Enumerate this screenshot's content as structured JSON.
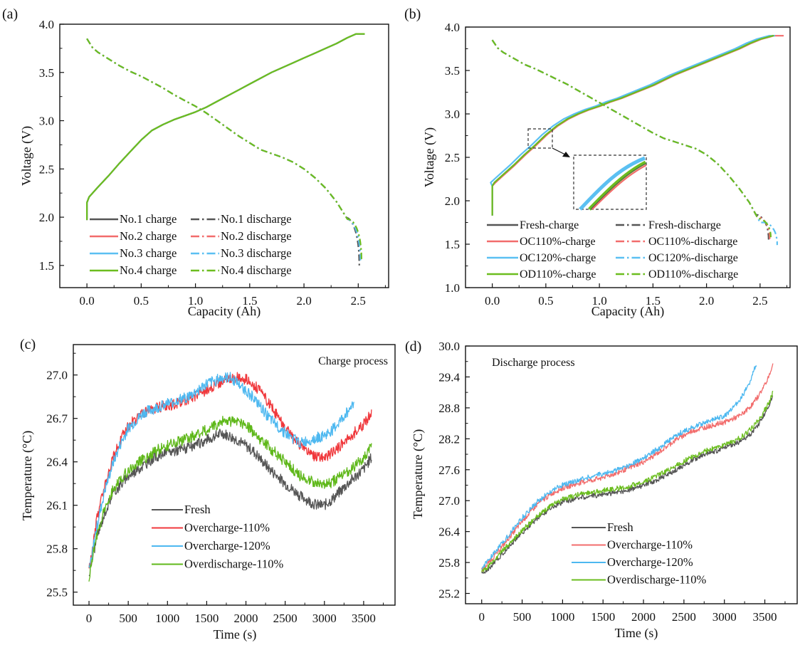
{
  "figure": {
    "colors": {
      "black": "#555555",
      "red": "#f26c6c",
      "blue": "#5bc0f2",
      "green": "#6bbd1f",
      "axis": "#111111"
    }
  },
  "chart_data": [
    {
      "panel": "(a)",
      "type": "line",
      "title": "",
      "xlabel": "Capacity (Ah)",
      "ylabel": "Voltage (V)",
      "xlim": [
        -0.25,
        2.78
      ],
      "ylim": [
        1.27,
        4.0
      ],
      "xticks": [
        "0.0",
        "0.5",
        "1.0",
        "1.5",
        "2.0",
        "2.5"
      ],
      "xtick_values": [
        0,
        0.5,
        1.0,
        1.5,
        2.0,
        2.5
      ],
      "yticks": [
        "1.5",
        "2.0",
        "2.5",
        "3.0",
        "3.5",
        "4.0"
      ],
      "ytick_values": [
        1.5,
        2.0,
        2.5,
        3.0,
        3.5,
        4.0
      ],
      "legend_position": "bottom-center",
      "series": [
        {
          "name": "No.1 charge",
          "color": "#555555",
          "style": "solid",
          "kind": "charge",
          "offset": 0.0,
          "end": 2.56
        },
        {
          "name": "No.2 charge",
          "color": "#f26c6c",
          "style": "solid",
          "kind": "charge",
          "offset": 0.0,
          "end": 2.56
        },
        {
          "name": "No.3 charge",
          "color": "#5bc0f2",
          "style": "solid",
          "kind": "charge",
          "offset": 0.0,
          "end": 2.56
        },
        {
          "name": "No.4 charge",
          "color": "#6bbd1f",
          "style": "solid",
          "kind": "charge",
          "offset": 0.0,
          "end": 2.56
        },
        {
          "name": "No.1 discharge",
          "color": "#555555",
          "style": "dashdot",
          "kind": "discharge",
          "cap": 2.51,
          "vend": 1.5
        },
        {
          "name": "No.2 discharge",
          "color": "#f26c6c",
          "style": "dashdot",
          "kind": "discharge",
          "cap": 2.52,
          "vend": 1.55
        },
        {
          "name": "No.3 discharge",
          "color": "#5bc0f2",
          "style": "dashdot",
          "kind": "discharge",
          "cap": 2.52,
          "vend": 1.53
        },
        {
          "name": "No.4 discharge",
          "color": "#6bbd1f",
          "style": "dashdot",
          "kind": "discharge",
          "cap": 2.53,
          "vend": 1.56
        }
      ],
      "charge_curve": {
        "x": [
          0.0,
          0.0,
          0.02,
          0.1,
          0.2,
          0.3,
          0.4,
          0.5,
          0.6,
          0.7,
          0.8,
          0.9,
          1.0,
          1.1,
          1.2,
          1.3,
          1.4,
          1.5,
          1.6,
          1.7,
          1.8,
          1.9,
          2.0,
          2.1,
          2.2,
          2.3,
          2.4,
          2.48
        ],
        "y": [
          1.97,
          2.15,
          2.21,
          2.31,
          2.43,
          2.56,
          2.68,
          2.8,
          2.9,
          2.96,
          3.01,
          3.05,
          3.09,
          3.14,
          3.2,
          3.26,
          3.32,
          3.38,
          3.44,
          3.5,
          3.55,
          3.6,
          3.65,
          3.7,
          3.75,
          3.8,
          3.86,
          3.9
        ]
      },
      "discharge_curve": {
        "x": [
          0.0,
          0.05,
          0.1,
          0.2,
          0.3,
          0.4,
          0.5,
          0.6,
          0.7,
          0.8,
          0.9,
          1.0,
          1.1,
          1.2,
          1.3,
          1.4,
          1.5,
          1.6,
          1.7,
          1.8,
          1.9,
          2.0,
          2.1,
          2.2,
          2.3,
          2.4
        ],
        "y": [
          3.85,
          3.76,
          3.71,
          3.64,
          3.57,
          3.51,
          3.46,
          3.4,
          3.34,
          3.27,
          3.21,
          3.15,
          3.08,
          3.0,
          2.92,
          2.84,
          2.77,
          2.7,
          2.66,
          2.62,
          2.57,
          2.5,
          2.41,
          2.3,
          2.16,
          1.98
        ]
      }
    },
    {
      "panel": "(b)",
      "type": "line",
      "title": "",
      "xlabel": "Capacity (Ah)",
      "ylabel": "Voltage (V)",
      "xlim": [
        -0.25,
        2.78
      ],
      "ylim": [
        1.0,
        4.0
      ],
      "xticks": [
        "0.0",
        "0.5",
        "1.0",
        "1.5",
        "2.0",
        "2.5"
      ],
      "xtick_values": [
        0,
        0.5,
        1.0,
        1.5,
        2.0,
        2.5
      ],
      "yticks": [
        "1.0",
        "1.5",
        "2.0",
        "2.5",
        "3.0",
        "3.5",
        "4.0"
      ],
      "ytick_values": [
        1.0,
        1.5,
        2.0,
        2.5,
        3.0,
        3.5,
        4.0
      ],
      "legend_position": "bottom-center",
      "inset": "zoomed view of charge curves near 0.35–0.55 Ah, 2.6–2.8 V",
      "series": [
        {
          "name": "Fresh-charge",
          "color": "#555555",
          "style": "solid",
          "kind": "charge",
          "offset": 0.0,
          "end": 2.62
        },
        {
          "name": "Fresh-discharge",
          "color": "#555555",
          "style": "dashdot",
          "kind": "discharge",
          "cap": 2.58,
          "vend": 1.55
        },
        {
          "name": "OC110%-charge",
          "color": "#f26c6c",
          "style": "solid",
          "kind": "charge",
          "offset": 0.01,
          "end": 2.72
        },
        {
          "name": "OC110%-discharge",
          "color": "#f26c6c",
          "style": "dashdot",
          "kind": "discharge",
          "cap": 2.59,
          "vend": 1.56
        },
        {
          "name": "OC120%-charge",
          "color": "#5bc0f2",
          "style": "solid",
          "kind": "charge",
          "offset": -0.035,
          "end": 2.64
        },
        {
          "name": "OC120%-discharge",
          "color": "#5bc0f2",
          "style": "dashdot",
          "kind": "discharge",
          "cap": 2.66,
          "vend": 1.49
        },
        {
          "name": "OD110%-charge",
          "color": "#6bbd1f",
          "style": "solid",
          "kind": "charge",
          "offset": 0.0,
          "end": 2.63
        },
        {
          "name": "OD110%-discharge",
          "color": "#6bbd1f",
          "style": "dashdot",
          "kind": "discharge",
          "cap": 2.6,
          "vend": 1.58
        }
      ],
      "charge_curve": {
        "x": [
          0.0,
          0.0,
          0.02,
          0.1,
          0.2,
          0.3,
          0.4,
          0.5,
          0.6,
          0.7,
          0.8,
          0.9,
          1.0,
          1.1,
          1.2,
          1.3,
          1.4,
          1.5,
          1.6,
          1.7,
          1.8,
          1.9,
          2.0,
          2.1,
          2.2,
          2.3,
          2.4,
          2.5,
          2.62
        ],
        "y": [
          1.83,
          2.17,
          2.21,
          2.3,
          2.41,
          2.53,
          2.64,
          2.76,
          2.86,
          2.94,
          3.0,
          3.05,
          3.09,
          3.14,
          3.18,
          3.23,
          3.28,
          3.33,
          3.39,
          3.45,
          3.5,
          3.55,
          3.6,
          3.65,
          3.7,
          3.75,
          3.81,
          3.86,
          3.9
        ]
      },
      "discharge_curve": {
        "x": [
          0.0,
          0.05,
          0.1,
          0.2,
          0.3,
          0.4,
          0.5,
          0.6,
          0.7,
          0.8,
          0.9,
          1.0,
          1.1,
          1.2,
          1.3,
          1.4,
          1.5,
          1.6,
          1.7,
          1.8,
          1.9,
          2.0,
          2.1,
          2.2,
          2.3,
          2.4,
          2.5
        ],
        "y": [
          3.85,
          3.76,
          3.71,
          3.64,
          3.57,
          3.52,
          3.46,
          3.4,
          3.34,
          3.27,
          3.2,
          3.13,
          3.06,
          2.99,
          2.92,
          2.85,
          2.78,
          2.72,
          2.68,
          2.64,
          2.6,
          2.53,
          2.43,
          2.3,
          2.15,
          1.98,
          1.75
        ]
      }
    },
    {
      "panel": "(c)",
      "type": "line",
      "title": "Charge process",
      "xlabel": "Time (s)",
      "ylabel": "Temperature (°C)",
      "xlim": [
        -200,
        3900
      ],
      "ylim": [
        25.41,
        27.21
      ],
      "xticks": [
        "0",
        "500",
        "1000",
        "1500",
        "2000",
        "2500",
        "3000",
        "3500"
      ],
      "xtick_values": [
        0,
        500,
        1000,
        1500,
        2000,
        2500,
        3000,
        3500
      ],
      "yticks": [
        "25.5",
        "25.8",
        "26.1",
        "26.4",
        "26.7",
        "27.0"
      ],
      "ytick_values": [
        25.5,
        25.8,
        26.1,
        26.4,
        26.7,
        27.0
      ],
      "legend_position": "center-bottom",
      "series": [
        {
          "name": "Fresh",
          "color": "#555555",
          "x": [
            0,
            50,
            100,
            200,
            300,
            400,
            500,
            700,
            900,
            1100,
            1300,
            1500,
            1700,
            1900,
            2100,
            2300,
            2500,
            2700,
            2900,
            3000,
            3100,
            3300,
            3500,
            3600
          ],
          "y": [
            25.62,
            25.75,
            25.88,
            26.05,
            26.18,
            26.24,
            26.3,
            26.38,
            26.45,
            26.48,
            26.5,
            26.55,
            26.6,
            26.55,
            26.47,
            26.35,
            26.25,
            26.16,
            26.1,
            26.1,
            26.14,
            26.25,
            26.35,
            26.43
          ]
        },
        {
          "name": "Overcharge-110%",
          "color": "#f0383c",
          "x": [
            0,
            50,
            100,
            200,
            300,
            400,
            500,
            700,
            900,
            1100,
            1300,
            1500,
            1700,
            1900,
            2050,
            2200,
            2400,
            2600,
            2800,
            2900,
            3000,
            3100,
            3300,
            3500,
            3600
          ],
          "y": [
            25.65,
            25.82,
            26.0,
            26.25,
            26.42,
            26.55,
            26.65,
            26.74,
            26.78,
            26.8,
            26.84,
            26.9,
            26.96,
            26.98,
            26.96,
            26.88,
            26.72,
            26.56,
            26.46,
            26.43,
            26.43,
            26.46,
            26.56,
            26.66,
            26.74
          ]
        },
        {
          "name": "Overcharge-120%",
          "color": "#4db8f0",
          "x": [
            0,
            50,
            100,
            200,
            300,
            400,
            500,
            700,
            900,
            1100,
            1300,
            1500,
            1700,
            1800,
            1950,
            2100,
            2300,
            2500,
            2700,
            2800,
            2900,
            3000,
            3100,
            3200,
            3380
          ],
          "y": [
            25.65,
            25.8,
            25.95,
            26.2,
            26.38,
            26.52,
            26.63,
            26.74,
            26.78,
            26.82,
            26.86,
            26.94,
            26.98,
            26.98,
            26.92,
            26.84,
            26.7,
            26.6,
            26.53,
            26.55,
            26.57,
            26.58,
            26.62,
            26.68,
            26.81
          ]
        },
        {
          "name": "Overdischarge-110%",
          "color": "#5fb81a",
          "x": [
            0,
            50,
            100,
            200,
            300,
            400,
            500,
            700,
            900,
            1100,
            1300,
            1500,
            1700,
            1900,
            2000,
            2100,
            2300,
            2500,
            2700,
            2900,
            3000,
            3100,
            3300,
            3500,
            3600
          ],
          "y": [
            25.6,
            25.74,
            25.9,
            26.07,
            26.2,
            26.28,
            26.34,
            26.42,
            26.49,
            26.53,
            26.57,
            26.62,
            26.68,
            26.68,
            26.66,
            26.6,
            26.5,
            26.4,
            26.3,
            26.25,
            26.24,
            26.26,
            26.33,
            26.43,
            26.51
          ]
        }
      ]
    },
    {
      "panel": "(d)",
      "type": "line",
      "title": "Discharge process",
      "xlabel": "Time (s)",
      "ylabel": "Temperature (°C)",
      "xlim": [
        -200,
        3900
      ],
      "ylim": [
        25.0,
        30.0
      ],
      "xticks": [
        "0",
        "500",
        "1000",
        "1500",
        "2000",
        "2500",
        "3000",
        "3500"
      ],
      "xtick_values": [
        0,
        500,
        1000,
        1500,
        2000,
        2500,
        3000,
        3500
      ],
      "yticks": [
        "25.2",
        "25.8",
        "26.4",
        "27.0",
        "27.6",
        "28.2",
        "28.8",
        "29.4",
        "30.0"
      ],
      "ytick_values": [
        25.2,
        25.8,
        26.4,
        27.0,
        27.6,
        28.2,
        28.8,
        29.4,
        30.0
      ],
      "legend_position": "center-bottom",
      "series": [
        {
          "name": "Fresh",
          "color": "#555555",
          "x": [
            0,
            100,
            300,
            500,
            700,
            900,
            1000,
            1200,
            1400,
            1600,
            1800,
            2000,
            2200,
            2400,
            2600,
            2800,
            3000,
            3200,
            3350,
            3450,
            3550,
            3600
          ],
          "y": [
            25.57,
            25.7,
            26.05,
            26.38,
            26.68,
            26.9,
            26.97,
            27.06,
            27.1,
            27.14,
            27.2,
            27.3,
            27.43,
            27.6,
            27.78,
            27.92,
            28.02,
            28.15,
            28.33,
            28.55,
            28.85,
            29.05
          ]
        },
        {
          "name": "Overcharge-110%",
          "color": "#f26c6c",
          "x": [
            0,
            100,
            300,
            500,
            700,
            900,
            1000,
            1200,
            1400,
            1600,
            1800,
            2000,
            2200,
            2400,
            2600,
            2800,
            3000,
            3200,
            3350,
            3450,
            3550,
            3600
          ],
          "y": [
            25.65,
            25.82,
            26.2,
            26.6,
            26.95,
            27.17,
            27.24,
            27.34,
            27.41,
            27.5,
            27.62,
            27.75,
            27.95,
            28.18,
            28.35,
            28.44,
            28.52,
            28.65,
            28.87,
            29.1,
            29.42,
            29.63
          ]
        },
        {
          "name": "Overcharge-120%",
          "color": "#4db8f0",
          "x": [
            0,
            100,
            300,
            500,
            700,
            900,
            1000,
            1200,
            1400,
            1600,
            1800,
            2000,
            2200,
            2400,
            2600,
            2800,
            3000,
            3100,
            3200,
            3300,
            3400
          ],
          "y": [
            25.7,
            25.87,
            26.27,
            26.67,
            27.0,
            27.23,
            27.3,
            27.4,
            27.49,
            27.55,
            27.67,
            27.82,
            28.03,
            28.27,
            28.42,
            28.53,
            28.65,
            28.78,
            28.97,
            29.25,
            29.68
          ]
        },
        {
          "name": "Overdischarge-110%",
          "color": "#6bbd1f",
          "x": [
            0,
            100,
            300,
            500,
            700,
            900,
            1000,
            1200,
            1400,
            1600,
            1800,
            2000,
            2200,
            2400,
            2600,
            2800,
            3000,
            3200,
            3350,
            3450,
            3550,
            3600
          ],
          "y": [
            25.62,
            25.75,
            26.1,
            26.42,
            26.72,
            26.94,
            27.02,
            27.12,
            27.17,
            27.22,
            27.27,
            27.36,
            27.5,
            27.68,
            27.85,
            27.98,
            28.08,
            28.22,
            28.42,
            28.62,
            28.9,
            29.1
          ]
        }
      ]
    }
  ]
}
